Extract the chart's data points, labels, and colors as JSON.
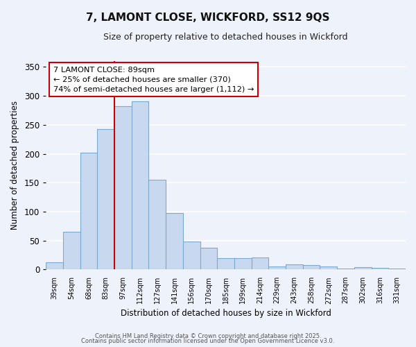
{
  "title": "7, LAMONT CLOSE, WICKFORD, SS12 9QS",
  "subtitle": "Size of property relative to detached houses in Wickford",
  "xlabel": "Distribution of detached houses by size in Wickford",
  "ylabel": "Number of detached properties",
  "categories": [
    "39sqm",
    "54sqm",
    "68sqm",
    "83sqm",
    "97sqm",
    "112sqm",
    "127sqm",
    "141sqm",
    "156sqm",
    "170sqm",
    "185sqm",
    "199sqm",
    "214sqm",
    "229sqm",
    "243sqm",
    "258sqm",
    "272sqm",
    "287sqm",
    "302sqm",
    "316sqm",
    "331sqm"
  ],
  "values": [
    12,
    65,
    202,
    242,
    282,
    290,
    155,
    98,
    48,
    37,
    19,
    19,
    21,
    5,
    9,
    8,
    5,
    1,
    4,
    3,
    2
  ],
  "bar_color": "#c8d8ee",
  "bar_edge_color": "#7aaad0",
  "vline_color": "#cc0000",
  "annotation_title": "7 LAMONT CLOSE: 89sqm",
  "annotation_line1": "← 25% of detached houses are smaller (370)",
  "annotation_line2": "74% of semi-detached houses are larger (1,112) →",
  "annotation_box_facecolor": "#ffffff",
  "annotation_box_edge": "#cc0000",
  "ylim": [
    0,
    360
  ],
  "yticks": [
    0,
    50,
    100,
    150,
    200,
    250,
    300,
    350
  ],
  "footer1": "Contains HM Land Registry data © Crown copyright and database right 2025.",
  "footer2": "Contains public sector information licensed under the Open Government Licence v3.0.",
  "bg_color": "#eef2fb",
  "grid_color": "#ffffff",
  "property_sqm": 89,
  "bin_starts": [
    39,
    54,
    68,
    83,
    97,
    112,
    127,
    141,
    156,
    170,
    185,
    199,
    214,
    229,
    243,
    258,
    272,
    287,
    302,
    316,
    331
  ]
}
